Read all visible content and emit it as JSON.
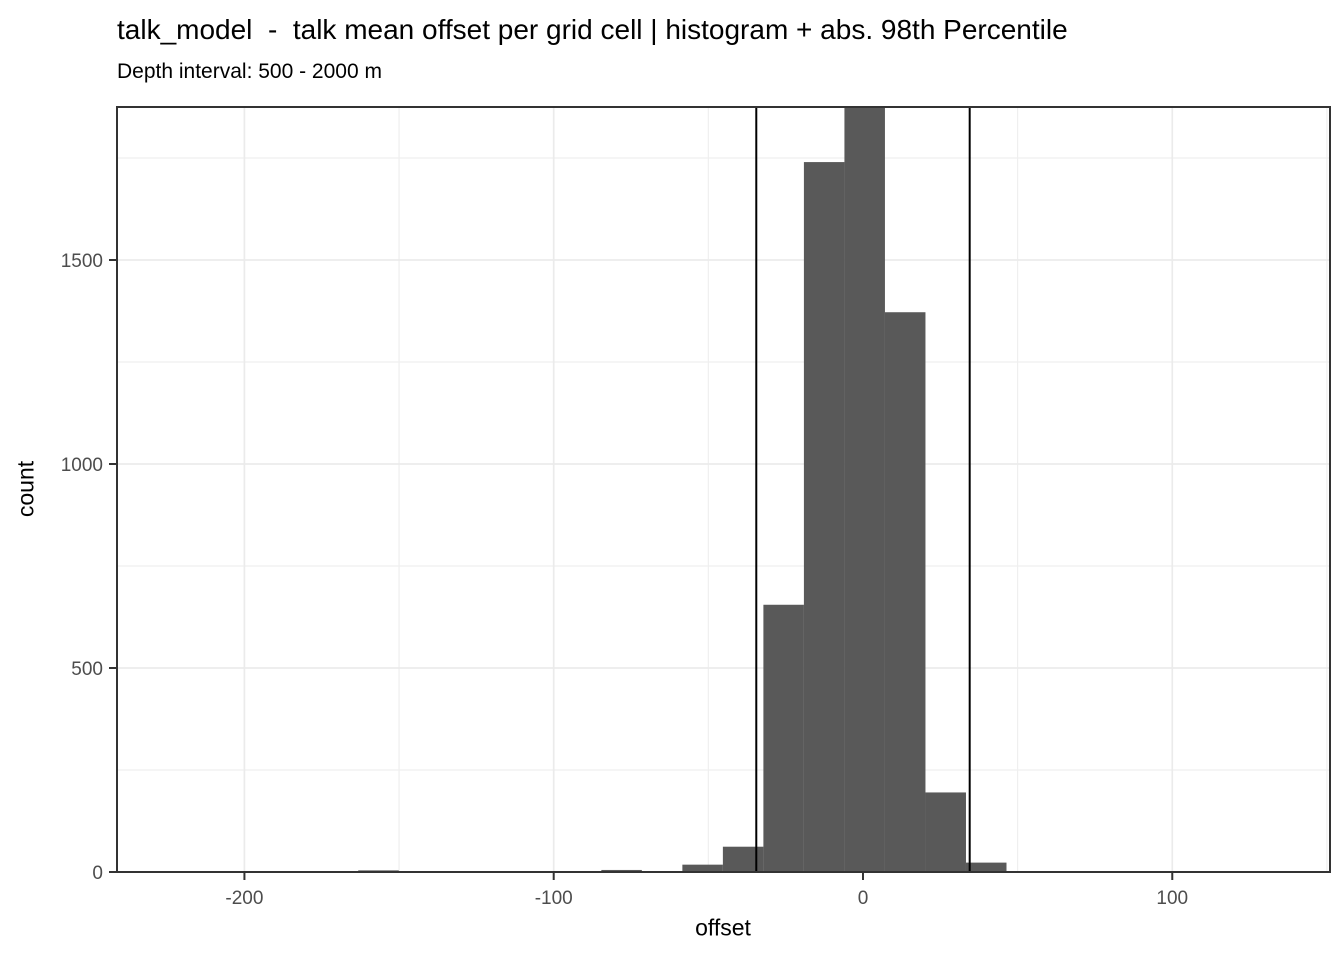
{
  "chart_data": {
    "type": "bar",
    "subtype": "histogram",
    "title": "talk_model  -  talk mean offset per grid cell | histogram + abs. 98th Percentile",
    "subtitle": "Depth interval: 500 - 2000 m",
    "xlabel": "offset",
    "ylabel": "count",
    "xlim": [
      -241.2,
      151
    ],
    "ylim": [
      0,
      1875
    ],
    "bin_width": 13.1,
    "bins": [
      {
        "x0": -163.2,
        "x1": -150.1,
        "count": 4
      },
      {
        "x0": -84.6,
        "x1": -71.5,
        "count": 5
      },
      {
        "x0": -71.5,
        "x1": -58.4,
        "count": 2
      },
      {
        "x0": -58.4,
        "x1": -45.3,
        "count": 18
      },
      {
        "x0": -45.3,
        "x1": -32.2,
        "count": 62
      },
      {
        "x0": -32.2,
        "x1": -19.1,
        "count": 655
      },
      {
        "x0": -19.1,
        "x1": -6.0,
        "count": 1740
      },
      {
        "x0": -6.0,
        "x1": 7.1,
        "count": 1890
      },
      {
        "x0": 7.1,
        "x1": 20.2,
        "count": 1372
      },
      {
        "x0": 20.2,
        "x1": 33.3,
        "count": 195
      },
      {
        "x0": 33.3,
        "x1": 46.4,
        "count": 23
      }
    ],
    "vlines": [
      -34.5,
      34.5
    ],
    "x_major_ticks": [
      -200,
      -100,
      0,
      100
    ],
    "x_minor_gridlines": [
      -150,
      -50,
      50,
      150
    ],
    "y_major_ticks": [
      0,
      500,
      1000,
      1500
    ],
    "y_minor_gridlines": [
      250,
      750,
      1250,
      1750
    ],
    "grid": true,
    "legend": "none",
    "colors": {
      "bar": "#595959",
      "grid_major": "#EBEBEB",
      "grid_minor": "#EFEFEF",
      "panel_border": "#333333",
      "tick_mark": "#333333",
      "axis_text": "#4D4D4D",
      "vline": "#000000",
      "background": "#FFFFFF"
    }
  }
}
